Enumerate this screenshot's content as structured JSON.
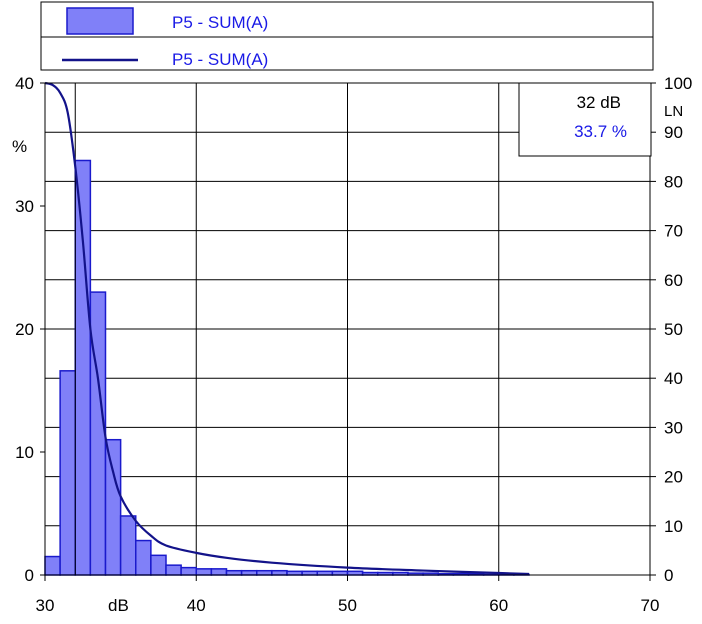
{
  "chart_data": {
    "type": "bar",
    "legend": {
      "placement": "top",
      "entries": [
        {
          "label": "P5 - SUM(A)",
          "kind": "bar"
        },
        {
          "label": "P5 - SUM(A)",
          "kind": "line"
        }
      ]
    },
    "x_axis": {
      "range": [
        30,
        70
      ],
      "ticks": [
        30,
        40,
        50,
        60,
        70
      ],
      "unit_label": "dB"
    },
    "y_left": {
      "range": [
        0,
        40
      ],
      "ticks": [
        0,
        10,
        20,
        30,
        40
      ],
      "unit_label": "%"
    },
    "y_right": {
      "range": [
        0,
        100
      ],
      "ticks": [
        0,
        10,
        20,
        30,
        40,
        50,
        60,
        70,
        80,
        90,
        100
      ],
      "unit_label": "LN"
    },
    "grid": true,
    "cursor": {
      "x": 32
    },
    "readout": {
      "value_text": "32 dB",
      "percent_text": "33.7 %"
    },
    "series": [
      {
        "name": "P5 - SUM(A)",
        "type": "bar",
        "axis": "left",
        "bin_width": 1,
        "bins": [
          {
            "x0": 30,
            "value": 1.5
          },
          {
            "x0": 31,
            "value": 16.6
          },
          {
            "x0": 32,
            "value": 33.7
          },
          {
            "x0": 33,
            "value": 23.0
          },
          {
            "x0": 34,
            "value": 11.0
          },
          {
            "x0": 35,
            "value": 4.8
          },
          {
            "x0": 36,
            "value": 2.8
          },
          {
            "x0": 37,
            "value": 1.6
          },
          {
            "x0": 38,
            "value": 0.8
          },
          {
            "x0": 39,
            "value": 0.6
          },
          {
            "x0": 40,
            "value": 0.5
          },
          {
            "x0": 41,
            "value": 0.5
          },
          {
            "x0": 42,
            "value": 0.35
          },
          {
            "x0": 43,
            "value": 0.35
          },
          {
            "x0": 44,
            "value": 0.35
          },
          {
            "x0": 45,
            "value": 0.35
          },
          {
            "x0": 46,
            "value": 0.3
          },
          {
            "x0": 47,
            "value": 0.3
          },
          {
            "x0": 48,
            "value": 0.3
          },
          {
            "x0": 49,
            "value": 0.3
          },
          {
            "x0": 50,
            "value": 0.3
          },
          {
            "x0": 51,
            "value": 0.2
          },
          {
            "x0": 52,
            "value": 0.2
          },
          {
            "x0": 53,
            "value": 0.2
          },
          {
            "x0": 54,
            "value": 0.15
          },
          {
            "x0": 55,
            "value": 0.15
          },
          {
            "x0": 56,
            "value": 0.1
          },
          {
            "x0": 57,
            "value": 0.1
          },
          {
            "x0": 58,
            "value": 0.1
          },
          {
            "x0": 59,
            "value": 0.05
          },
          {
            "x0": 60,
            "value": 0.05
          },
          {
            "x0": 61,
            "value": 0.05
          }
        ]
      },
      {
        "name": "P5 - SUM(A)",
        "type": "line",
        "axis": "right",
        "points": [
          [
            30,
            100
          ],
          [
            30.5,
            99.6
          ],
          [
            31,
            98
          ],
          [
            31.5,
            94
          ],
          [
            32,
            83
          ],
          [
            32.5,
            68
          ],
          [
            33,
            50
          ],
          [
            33.5,
            40
          ],
          [
            34,
            28
          ],
          [
            34.5,
            21
          ],
          [
            35,
            16
          ],
          [
            36,
            11
          ],
          [
            37,
            8
          ],
          [
            38,
            6
          ],
          [
            40,
            4.5
          ],
          [
            42,
            3.5
          ],
          [
            45,
            2.5
          ],
          [
            50,
            1.5
          ],
          [
            55,
            0.9
          ],
          [
            60,
            0.4
          ],
          [
            62,
            0.2
          ]
        ]
      }
    ]
  },
  "colors": {
    "bar_fill": "#8080f8",
    "bar_stroke": "#1a1acc",
    "line": "#13138a",
    "grid": "#000000",
    "readout_percent": "#1a1ae6",
    "legend_text": "#1a1ae6"
  }
}
